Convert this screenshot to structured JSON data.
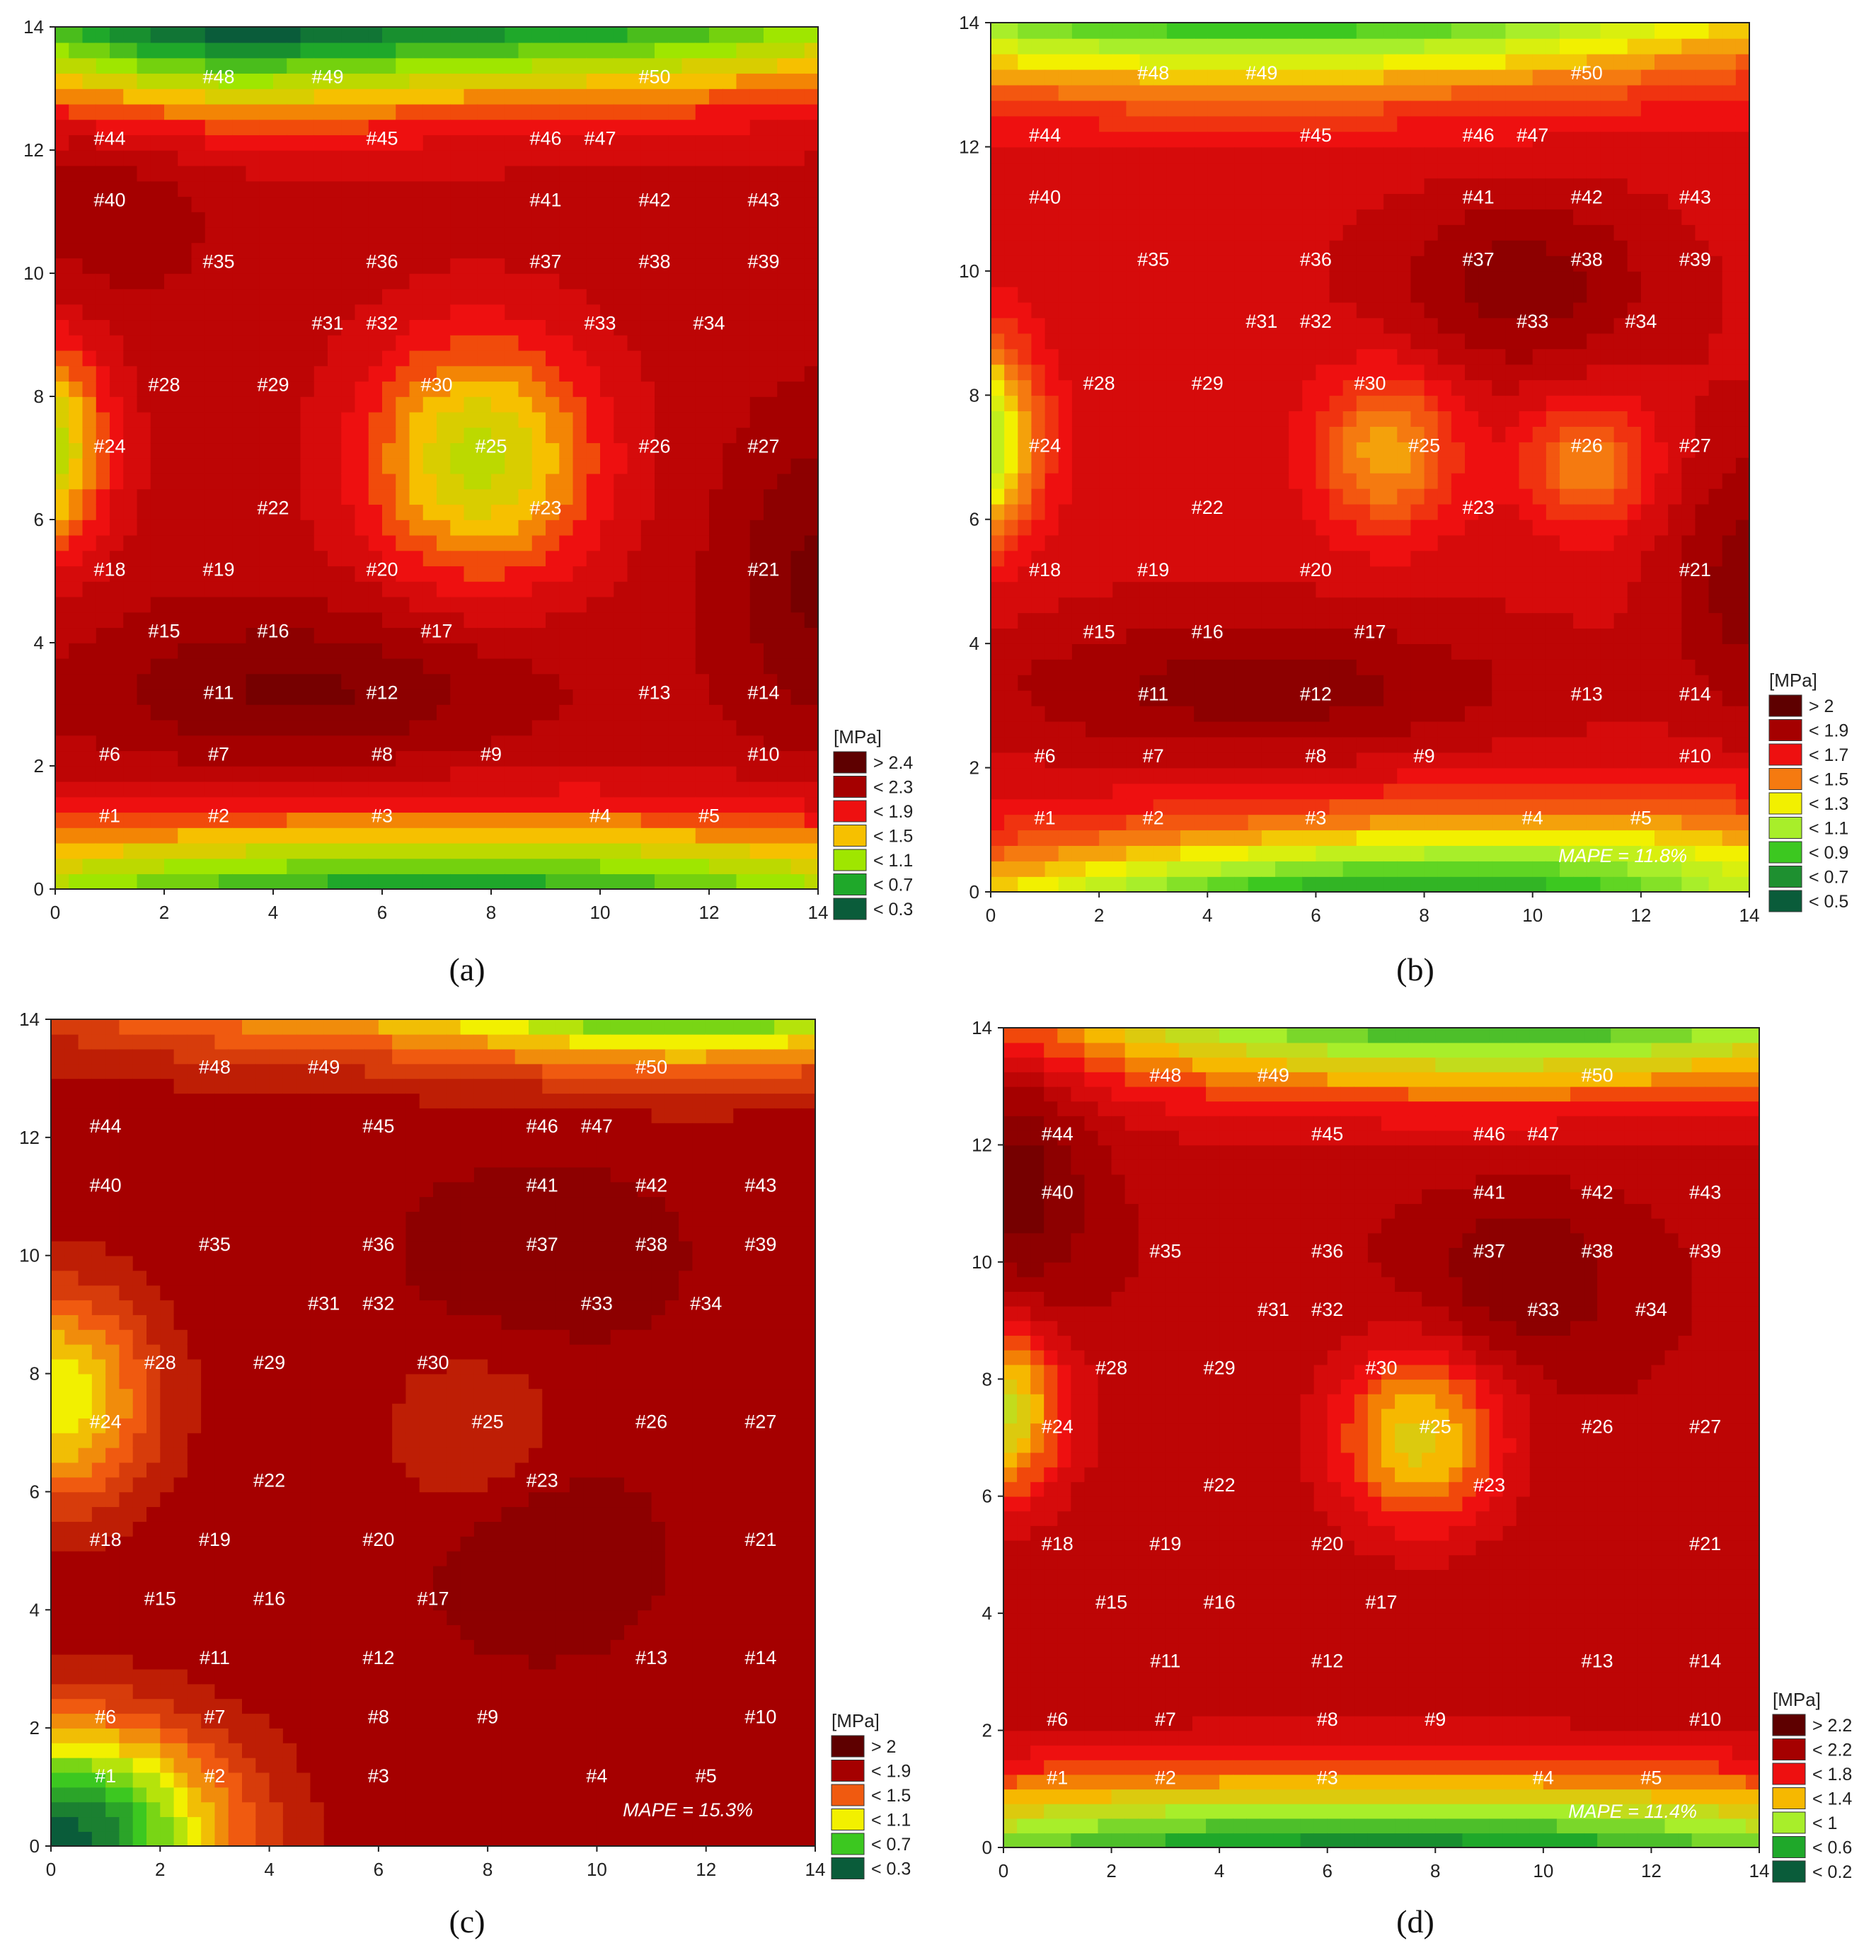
{
  "chart_data": [
    {
      "type": "heatmap",
      "panel": "(a)",
      "x_range": [
        0,
        14
      ],
      "y_range": [
        0,
        14
      ],
      "x_ticks": [
        0,
        2,
        4,
        6,
        8,
        10,
        12,
        14
      ],
      "y_ticks": [
        0,
        2,
        4,
        6,
        8,
        10,
        12,
        14
      ],
      "legend_title": "[MPa]",
      "legend": [
        "> 2.4",
        "< 2.3",
        "< 1.9",
        "< 1.5",
        "< 1.1",
        "< 0.7",
        "< 0.3"
      ],
      "legend_colors": [
        "#5e0000",
        "#a50000",
        "#ee1010",
        "#f6c000",
        "#9fe600",
        "#1fa82a",
        "#0a5c3a"
      ],
      "mape": ""
    },
    {
      "type": "heatmap",
      "panel": "(b)",
      "x_range": [
        0,
        14
      ],
      "y_range": [
        0,
        14
      ],
      "x_ticks": [
        0,
        2,
        4,
        6,
        8,
        10,
        12,
        14
      ],
      "y_ticks": [
        0,
        2,
        4,
        6,
        8,
        10,
        12,
        14
      ],
      "legend_title": "[MPa]",
      "legend": [
        "> 2",
        "< 1.9",
        "< 1.7",
        "< 1.5",
        "< 1.3",
        "< 1.1",
        "< 0.9",
        "< 0.7",
        "< 0.5"
      ],
      "legend_colors": [
        "#5e0000",
        "#a50000",
        "#ee1010",
        "#f57a10",
        "#f2f000",
        "#a8ee2a",
        "#3cc820",
        "#1e9030",
        "#0a5c3a"
      ],
      "mape": "MAPE = 11.8%"
    },
    {
      "type": "heatmap",
      "panel": "(c)",
      "x_range": [
        0,
        14
      ],
      "y_range": [
        0,
        14
      ],
      "x_ticks": [
        0,
        2,
        4,
        6,
        8,
        10,
        12,
        14
      ],
      "y_ticks": [
        0,
        2,
        4,
        6,
        8,
        10,
        12,
        14
      ],
      "legend_title": "[MPa]",
      "legend": [
        "> 2",
        "< 1.9",
        "< 1.5",
        "< 1.1",
        "< 0.7",
        "< 0.3"
      ],
      "legend_colors": [
        "#5e0000",
        "#a50000",
        "#f05a10",
        "#f2f000",
        "#3cc820",
        "#0a5c3a"
      ],
      "mape": "MAPE = 15.3%"
    },
    {
      "type": "heatmap",
      "panel": "(d)",
      "x_range": [
        0,
        14
      ],
      "y_range": [
        0,
        14
      ],
      "x_ticks": [
        0,
        2,
        4,
        6,
        8,
        10,
        12,
        14
      ],
      "y_ticks": [
        0,
        2,
        4,
        6,
        8,
        10,
        12,
        14
      ],
      "legend_title": "[MPa]",
      "legend": [
        "> 2.2",
        "< 2.2",
        "< 1.8",
        "< 1.4",
        "< 1",
        "< 0.6",
        "< 0.2"
      ],
      "legend_colors": [
        "#5e0000",
        "#a50000",
        "#ee1010",
        "#f6b800",
        "#a8ee2a",
        "#1fa82a",
        "#0a5c3a"
      ],
      "mape": "MAPE = 11.4%"
    }
  ],
  "points": [
    {
      "id": "#1",
      "x": 1,
      "y": 1.2
    },
    {
      "id": "#2",
      "x": 3,
      "y": 1.2
    },
    {
      "id": "#3",
      "x": 6,
      "y": 1.2
    },
    {
      "id": "#4",
      "x": 10,
      "y": 1.2
    },
    {
      "id": "#5",
      "x": 12,
      "y": 1.2
    },
    {
      "id": "#6",
      "x": 1,
      "y": 2.2
    },
    {
      "id": "#7",
      "x": 3,
      "y": 2.2
    },
    {
      "id": "#8",
      "x": 6,
      "y": 2.2
    },
    {
      "id": "#9",
      "x": 8,
      "y": 2.2
    },
    {
      "id": "#10",
      "x": 13,
      "y": 2.2
    },
    {
      "id": "#11",
      "x": 3,
      "y": 3.2
    },
    {
      "id": "#12",
      "x": 6,
      "y": 3.2
    },
    {
      "id": "#13",
      "x": 11,
      "y": 3.2
    },
    {
      "id": "#14",
      "x": 13,
      "y": 3.2
    },
    {
      "id": "#15",
      "x": 2,
      "y": 4.2
    },
    {
      "id": "#16",
      "x": 4,
      "y": 4.2
    },
    {
      "id": "#17",
      "x": 7,
      "y": 4.2
    },
    {
      "id": "#18",
      "x": 1,
      "y": 5.2
    },
    {
      "id": "#19",
      "x": 3,
      "y": 5.2
    },
    {
      "id": "#20",
      "x": 6,
      "y": 5.2
    },
    {
      "id": "#21",
      "x": 13,
      "y": 5.2
    },
    {
      "id": "#22",
      "x": 4,
      "y": 6.2
    },
    {
      "id": "#23",
      "x": 9,
      "y": 6.2
    },
    {
      "id": "#24",
      "x": 1,
      "y": 7.2
    },
    {
      "id": "#25",
      "x": 8,
      "y": 7.2
    },
    {
      "id": "#26",
      "x": 11,
      "y": 7.2
    },
    {
      "id": "#27",
      "x": 13,
      "y": 7.2
    },
    {
      "id": "#28",
      "x": 2,
      "y": 8.2
    },
    {
      "id": "#29",
      "x": 4,
      "y": 8.2
    },
    {
      "id": "#30",
      "x": 7,
      "y": 8.2
    },
    {
      "id": "#31",
      "x": 5,
      "y": 9.2
    },
    {
      "id": "#32",
      "x": 6,
      "y": 9.2
    },
    {
      "id": "#33",
      "x": 10,
      "y": 9.2
    },
    {
      "id": "#34",
      "x": 12,
      "y": 9.2
    },
    {
      "id": "#35",
      "x": 3,
      "y": 10.2
    },
    {
      "id": "#36",
      "x": 6,
      "y": 10.2
    },
    {
      "id": "#37",
      "x": 9,
      "y": 10.2
    },
    {
      "id": "#38",
      "x": 11,
      "y": 10.2
    },
    {
      "id": "#39",
      "x": 13,
      "y": 10.2
    },
    {
      "id": "#40",
      "x": 1,
      "y": 11.2
    },
    {
      "id": "#41",
      "x": 9,
      "y": 11.2
    },
    {
      "id": "#42",
      "x": 11,
      "y": 11.2
    },
    {
      "id": "#43",
      "x": 13,
      "y": 11.2
    },
    {
      "id": "#44",
      "x": 1,
      "y": 12.2
    },
    {
      "id": "#45",
      "x": 6,
      "y": 12.2
    },
    {
      "id": "#46",
      "x": 9,
      "y": 12.2
    },
    {
      "id": "#47",
      "x": 10,
      "y": 12.2
    },
    {
      "id": "#48",
      "x": 3,
      "y": 13.2
    },
    {
      "id": "#49",
      "x": 5,
      "y": 13.2
    },
    {
      "id": "#50",
      "x": 11,
      "y": 13.2
    }
  ],
  "captions": [
    "(a)",
    "(b)",
    "(c)",
    "(d)"
  ]
}
